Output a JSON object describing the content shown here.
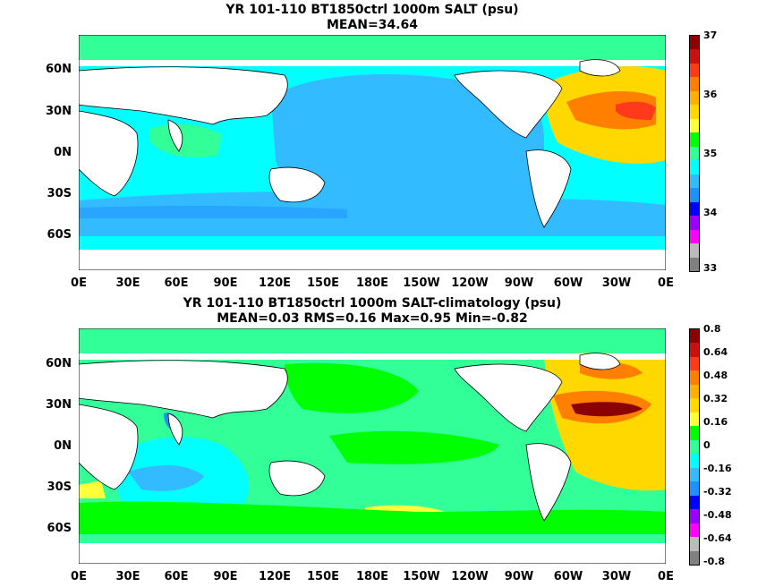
{
  "panels": [
    {
      "title_line1": "YR 101-110 BT1850ctrl 1000m SALT (psu)",
      "title_line2": "MEAN=34.64",
      "colorbar_labels": [
        "37",
        "36",
        "35",
        "34",
        "33"
      ],
      "colorbar_colors": [
        "#8b0000",
        "#cc1010",
        "#ff3a1a",
        "#ff7f00",
        "#ffb000",
        "#ffd800",
        "#ffff3a",
        "#00ff00",
        "#33ff99",
        "#00ffff",
        "#33bbff",
        "#1e90ff",
        "#0000ff",
        "#9900ff",
        "#ff00ff",
        "#bbbbbb",
        "#808080"
      ]
    },
    {
      "title_line1": "YR 101-110 BT1850ctrl 1000m SALT-climatology (psu)",
      "title_line2": "MEAN=0.03   RMS=0.16   Max=0.95   Min=-0.82",
      "colorbar_labels": [
        "0.8",
        "0.64",
        "0.48",
        "0.32",
        "0.16",
        "0",
        "-0.16",
        "-0.32",
        "-0.48",
        "-0.64",
        "-0.8"
      ],
      "colorbar_colors": [
        "#8b0000",
        "#cc1010",
        "#ff3a1a",
        "#ff7f00",
        "#ffb000",
        "#ffd800",
        "#ffff3a",
        "#00ff00",
        "#33ff99",
        "#00ffff",
        "#33bbff",
        "#1e90ff",
        "#0000ff",
        "#9900ff",
        "#ff00ff",
        "#bbbbbb",
        "#808080"
      ]
    }
  ],
  "lat_ticks": [
    "60N",
    "30N",
    "0N",
    "30S",
    "60S"
  ],
  "lon_ticks": [
    "0E",
    "30E",
    "60E",
    "90E",
    "120E",
    "150E",
    "180E",
    "150W",
    "120W",
    "90W",
    "60W",
    "30W",
    "0E"
  ],
  "colors": {
    "salt_low": "#1e90ff",
    "salt_mid": "#00ffff",
    "salt_high": "#33ff99",
    "anomaly_zero": "#33ff99",
    "land": "#ffffff"
  }
}
